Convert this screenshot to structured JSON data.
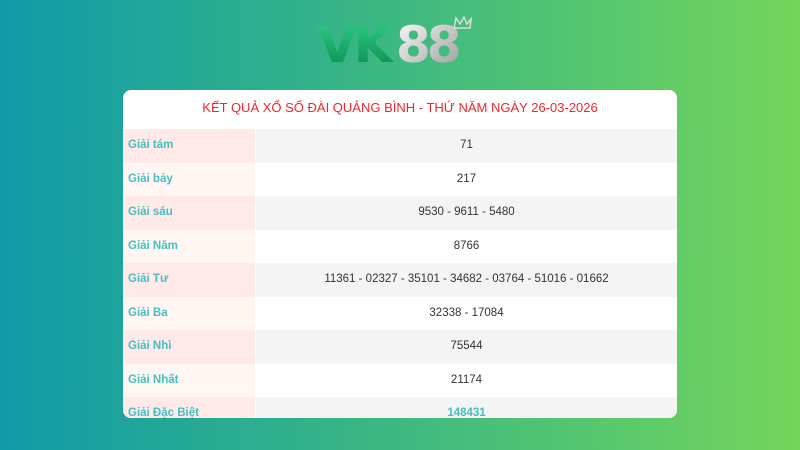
{
  "logo": {
    "text": "VK88"
  },
  "title": "KẾT QUẢ XỔ SỐ ĐÀI QUẢNG BÌNH - THỨ NĂM NGÀY 26-03-2026",
  "rows": [
    {
      "label": "Giải tám",
      "value": "71"
    },
    {
      "label": "Giải bảy",
      "value": "217"
    },
    {
      "label": "Giải sáu",
      "value": "9530 - 9611 - 5480"
    },
    {
      "label": "Giải Năm",
      "value": "8766"
    },
    {
      "label": "Giải Tư",
      "value": "11361 - 02327 - 35101 - 34682 - 03764 - 51016 - 01662"
    },
    {
      "label": "Giải Ba",
      "value": "32338 - 17084"
    },
    {
      "label": "Giải Nhì",
      "value": "75544"
    },
    {
      "label": "Giải Nhất",
      "value": "21174"
    },
    {
      "label": "Giải Đặc Biệt",
      "value": "148431"
    }
  ],
  "colors": {
    "title": "#f0262a",
    "label": "#45c0c0"
  }
}
